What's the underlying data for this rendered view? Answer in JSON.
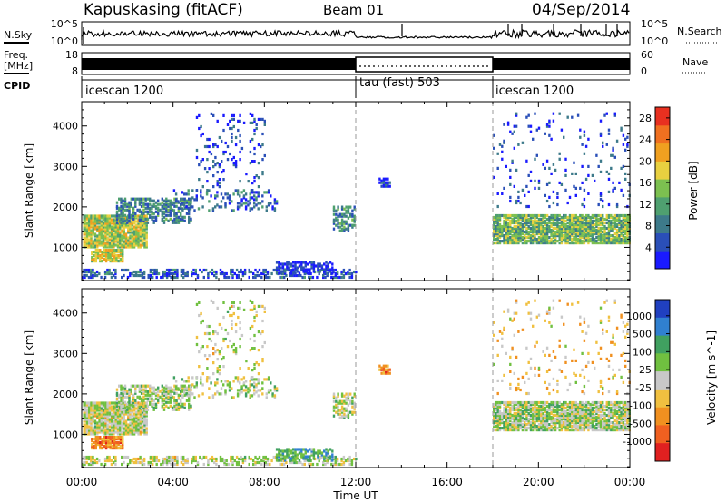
{
  "header": {
    "station": "Kapuskasing (fitACF)",
    "beam": "Beam 01",
    "date": "04/Sep/2014"
  },
  "strip": {
    "nsky_label": "N.Sky",
    "nsky_ticks": [
      "10^5",
      "10^0"
    ],
    "nsearch_label": "N.Search",
    "nsearch_ticks": [
      "10^5",
      "10^0"
    ],
    "freq_label": "Freq.",
    "freq_unit": "[MHz]",
    "freq_ticks": [
      "18",
      "8"
    ],
    "nave_label": "Nave",
    "nave_ticks": [
      "60",
      "0"
    ],
    "cpid_label": "CPID",
    "cpid_segments": [
      {
        "name": "icescan 1200",
        "start": 0,
        "end": 12
      },
      {
        "name": "tau (fast) 503",
        "start": 12,
        "end": 18
      },
      {
        "name": "icescan 1200",
        "start": 18,
        "end": 24
      }
    ]
  },
  "chart_data": [
    {
      "type": "heatmap",
      "name": "power",
      "xlabel": "Time UT",
      "ylabel": "Slant Range [km]",
      "xlim": [
        0,
        24
      ],
      "ylim": [
        180,
        4600
      ],
      "yticks": [
        "1000",
        "2000",
        "3000",
        "4000"
      ],
      "colorbar_label": "Power [dB]",
      "colorbar_ticks": [
        "4",
        "8",
        "12",
        "16",
        "20",
        "24",
        "28"
      ],
      "colorbar_range": [
        0,
        30
      ],
      "colors": [
        "#1a1aff",
        "#2a4fb8",
        "#3d7a8a",
        "#4fa070",
        "#7cc050",
        "#e8d040",
        "#f0a020",
        "#f07020",
        "#e83020"
      ],
      "echo_regions": [
        {
          "t0": 0.1,
          "t1": 2.8,
          "r0": 1000,
          "r1": 1800,
          "level": 0.55,
          "density": 0.9
        },
        {
          "t0": 0.4,
          "t1": 1.8,
          "r0": 650,
          "r1": 950,
          "level": 0.6,
          "density": 0.85
        },
        {
          "t0": 1.5,
          "t1": 4.8,
          "r0": 1600,
          "r1": 2200,
          "level": 0.3,
          "density": 0.5
        },
        {
          "t0": 4.0,
          "t1": 8.5,
          "r0": 1900,
          "r1": 2400,
          "level": 0.2,
          "density": 0.25
        },
        {
          "t0": 5.0,
          "t1": 8.0,
          "r0": 2400,
          "r1": 4300,
          "level": 0.15,
          "density": 0.08
        },
        {
          "t0": 0.0,
          "t1": 12.0,
          "r0": 250,
          "r1": 450,
          "level": 0.2,
          "density": 0.4
        },
        {
          "t0": 8.5,
          "t1": 11.0,
          "r0": 350,
          "r1": 650,
          "level": 0.1,
          "density": 0.6
        },
        {
          "t0": 11.0,
          "t1": 11.9,
          "r0": 1400,
          "r1": 2000,
          "level": 0.3,
          "density": 0.5
        },
        {
          "t0": 18.0,
          "t1": 24.0,
          "r0": 1100,
          "r1": 1800,
          "level": 0.45,
          "density": 0.85
        },
        {
          "t0": 18.0,
          "t1": 24.0,
          "r0": 2000,
          "r1": 4300,
          "level": 0.15,
          "density": 0.05
        },
        {
          "t0": 13.0,
          "t1": 13.5,
          "r0": 2500,
          "r1": 2700,
          "level": 0.15,
          "density": 0.6
        }
      ]
    },
    {
      "type": "heatmap",
      "name": "velocity",
      "xlabel": "Time UT",
      "ylabel": "Slant Range [km]",
      "xlim": [
        0,
        24
      ],
      "ylim": [
        180,
        4600
      ],
      "xticks": [
        "00:00",
        "04:00",
        "08:00",
        "12:00",
        "16:00",
        "20:00",
        "00:00"
      ],
      "yticks": [
        "1000",
        "2000",
        "3000",
        "4000"
      ],
      "colorbar_label": "Velocity [m s^-1]",
      "colorbar_ticks": [
        "1000",
        "500",
        "100",
        "25",
        "-25",
        "-100",
        "-500",
        "-1000"
      ],
      "colors": [
        "#2040c0",
        "#3080d0",
        "#40a060",
        "#70c040",
        "#c8c8c8",
        "#f0c040",
        "#f09020",
        "#f06020",
        "#e02020"
      ],
      "echo_regions": [
        {
          "t0": 0.1,
          "t1": 2.8,
          "r0": 1000,
          "r1": 1800,
          "level": 0.5,
          "density": 0.9
        },
        {
          "t0": 0.4,
          "t1": 1.8,
          "r0": 650,
          "r1": 950,
          "level": 0.75,
          "density": 0.85
        },
        {
          "t0": 1.5,
          "t1": 4.8,
          "r0": 1600,
          "r1": 2200,
          "level": 0.45,
          "density": 0.5
        },
        {
          "t0": 4.0,
          "t1": 8.5,
          "r0": 1900,
          "r1": 2400,
          "level": 0.45,
          "density": 0.25
        },
        {
          "t0": 5.0,
          "t1": 8.0,
          "r0": 2400,
          "r1": 4300,
          "level": 0.5,
          "density": 0.08
        },
        {
          "t0": 0.0,
          "t1": 12.0,
          "r0": 250,
          "r1": 450,
          "level": 0.5,
          "density": 0.4
        },
        {
          "t0": 8.5,
          "t1": 11.0,
          "r0": 350,
          "r1": 650,
          "level": 0.3,
          "density": 0.6
        },
        {
          "t0": 11.0,
          "t1": 11.9,
          "r0": 1400,
          "r1": 2000,
          "level": 0.45,
          "density": 0.5
        },
        {
          "t0": 18.0,
          "t1": 24.0,
          "r0": 1100,
          "r1": 1800,
          "level": 0.45,
          "density": 0.85
        },
        {
          "t0": 18.0,
          "t1": 24.0,
          "r0": 2000,
          "r1": 4300,
          "level": 0.6,
          "density": 0.05
        },
        {
          "t0": 13.0,
          "t1": 13.5,
          "r0": 2500,
          "r1": 2700,
          "level": 0.75,
          "density": 0.6
        }
      ]
    }
  ]
}
